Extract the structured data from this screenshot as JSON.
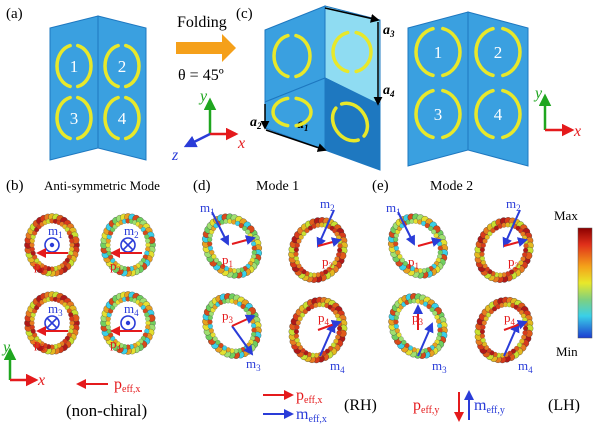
{
  "panels": {
    "a": "(a)",
    "b": "(b)",
    "c": "(c)",
    "d": "(d)",
    "e": "(e)"
  },
  "folding": {
    "label": "Folding",
    "angle": "θ = 45º"
  },
  "rings": [
    "1",
    "2",
    "3",
    "4"
  ],
  "axes": {
    "x": "x",
    "y": "y",
    "z": "z"
  },
  "lattice": {
    "a1": "a",
    "a1_sub": "1",
    "a2": "a",
    "a2_sub": "2",
    "a3": "a",
    "a3_sub": "3",
    "a4": "a",
    "a4_sub": "4"
  },
  "mode_titles": {
    "b": "Anti-symmetric Mode",
    "d": "Mode 1",
    "e": "Mode 2"
  },
  "dipoles": {
    "m": "m",
    "p": "p",
    "subs": [
      "1",
      "2",
      "3",
      "4"
    ]
  },
  "legend": {
    "peff_x": "p",
    "peff_x_sub": "eff,x",
    "meff_x": "m",
    "meff_x_sub": "eff,x",
    "peff_y": "p",
    "peff_y_sub": "eff,y",
    "meff_y": "m",
    "meff_y_sub": "eff,y",
    "non_chiral": "(non-chiral)",
    "rh": "(RH)",
    "lh": "(LH)"
  },
  "colorbar": {
    "max": "Max",
    "min": "Min"
  },
  "colors": {
    "panel": "#3aa0e0",
    "panel_dark": "#1e78c0",
    "panel_light": "#8fdcf2",
    "ring": "#e8e82a",
    "arrow_fold": "#f5a01a",
    "red": "#e41a1c",
    "blue": "#2a3cd8",
    "green": "#1fa61f"
  }
}
